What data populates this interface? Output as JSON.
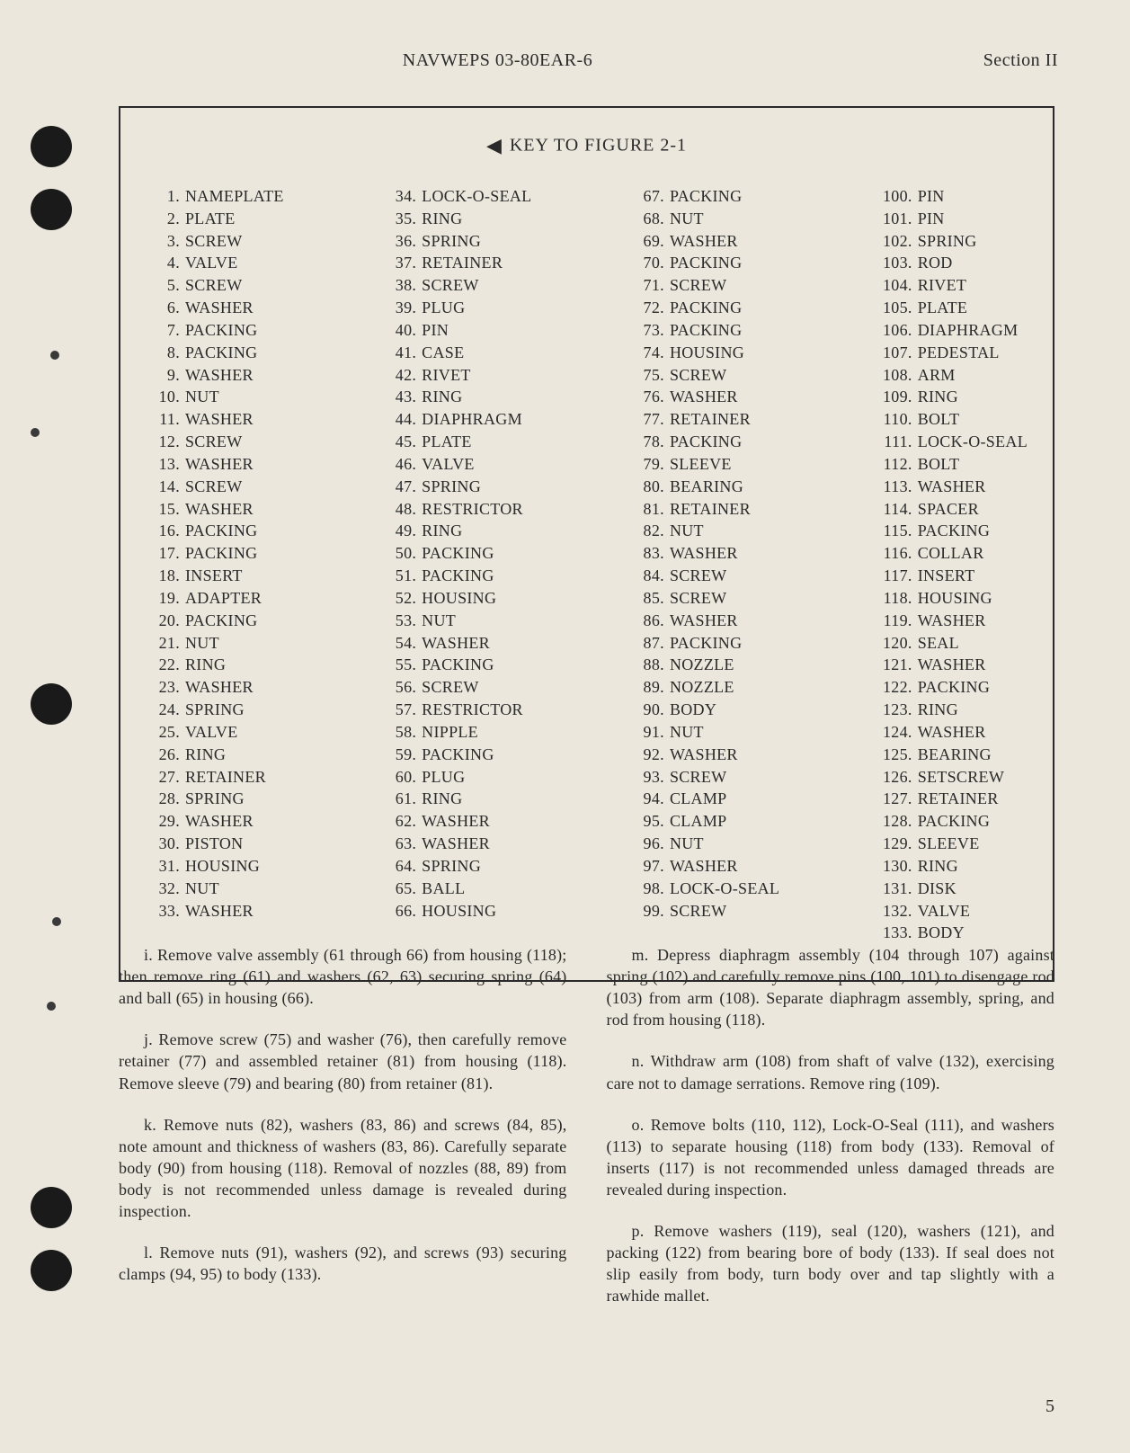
{
  "header": {
    "docid": "NAVWEPS 03-80EAR-6",
    "section": "Section II"
  },
  "keyBox": {
    "title": "KEY TO FIGURE 2-1",
    "items": [
      "NAMEPLATE",
      "PLATE",
      "SCREW",
      "VALVE",
      "SCREW",
      "WASHER",
      "PACKING",
      "PACKING",
      "WASHER",
      "NUT",
      "WASHER",
      "SCREW",
      "WASHER",
      "SCREW",
      "WASHER",
      "PACKING",
      "PACKING",
      "INSERT",
      "ADAPTER",
      "PACKING",
      "NUT",
      "RING",
      "WASHER",
      "SPRING",
      "VALVE",
      "RING",
      "RETAINER",
      "SPRING",
      "WASHER",
      "PISTON",
      "HOUSING",
      "NUT",
      "WASHER",
      "LOCK-O-SEAL",
      "RING",
      "SPRING",
      "RETAINER",
      "SCREW",
      "PLUG",
      "PIN",
      "CASE",
      "RIVET",
      "RING",
      "DIAPHRAGM",
      "PLATE",
      "VALVE",
      "SPRING",
      "RESTRICTOR",
      "RING",
      "PACKING",
      "PACKING",
      "HOUSING",
      "NUT",
      "WASHER",
      "PACKING",
      "SCREW",
      "RESTRICTOR",
      "NIPPLE",
      "PACKING",
      "PLUG",
      "RING",
      "WASHER",
      "WASHER",
      "SPRING",
      "BALL",
      "HOUSING",
      "PACKING",
      "NUT",
      "WASHER",
      "PACKING",
      "SCREW",
      "PACKING",
      "PACKING",
      "HOUSING",
      "SCREW",
      "WASHER",
      "RETAINER",
      "PACKING",
      "SLEEVE",
      "BEARING",
      "RETAINER",
      "NUT",
      "WASHER",
      "SCREW",
      "SCREW",
      "WASHER",
      "PACKING",
      "NOZZLE",
      "NOZZLE",
      "BODY",
      "NUT",
      "WASHER",
      "SCREW",
      "CLAMP",
      "CLAMP",
      "NUT",
      "WASHER",
      "LOCK-O-SEAL",
      "SCREW",
      "PIN",
      "PIN",
      "SPRING",
      "ROD",
      "RIVET",
      "PLATE",
      "DIAPHRAGM",
      "PEDESTAL",
      "ARM",
      "RING",
      "BOLT",
      "LOCK-O-SEAL",
      "BOLT",
      "WASHER",
      "SPACER",
      "PACKING",
      "COLLAR",
      "INSERT",
      "HOUSING",
      "WASHER",
      "SEAL",
      "WASHER",
      "PACKING",
      "RING",
      "WASHER",
      "BEARING",
      "SETSCREW",
      "RETAINER",
      "PACKING",
      "SLEEVE",
      "RING",
      "DISK",
      "VALVE",
      "BODY"
    ],
    "colBreaks": [
      33,
      66,
      99,
      133
    ]
  },
  "body": {
    "left": [
      "i. Remove valve assembly (61 through 66) from housing (118); then remove ring (61) and washers (62, 63) securing spring (64) and ball (65) in housing (66).",
      "j. Remove screw (75) and washer (76), then carefully remove retainer (77) and assembled retainer (81) from housing (118). Remove sleeve (79) and bearing (80) from retainer (81).",
      "k. Remove nuts (82), washers (83, 86) and screws (84, 85), note amount and thickness of washers (83, 86). Carefully separate body (90) from housing (118). Removal of nozzles (88, 89) from body is not recommended unless damage is revealed during inspection.",
      "l. Remove nuts (91), washers (92), and screws (93) securing clamps (94, 95) to body (133)."
    ],
    "right": [
      "m. Depress diaphragm assembly (104 through 107) against spring (102) and carefully remove pins (100, 101) to disengage rod (103) from arm (108). Separate diaphragm assembly, spring, and rod from housing (118).",
      "n. Withdraw arm (108) from shaft of valve (132), exercising care not to damage serrations. Remove ring (109).",
      "o. Remove bolts (110, 112), Lock-O-Seal (111), and washers (113) to separate housing (118) from body (133). Removal of inserts (117) is not recommended unless damaged threads are revealed during inspection.",
      "p. Remove washers (119), seal (120), washers (121), and packing (122) from bearing bore of body (133). If seal does not slip easily from body, turn body over and tap slightly with a rawhide mallet."
    ]
  },
  "pageNumber": "5",
  "colors": {
    "background": "#ece7dc",
    "text": "#2a2a2a",
    "border": "#2a2a2a"
  }
}
